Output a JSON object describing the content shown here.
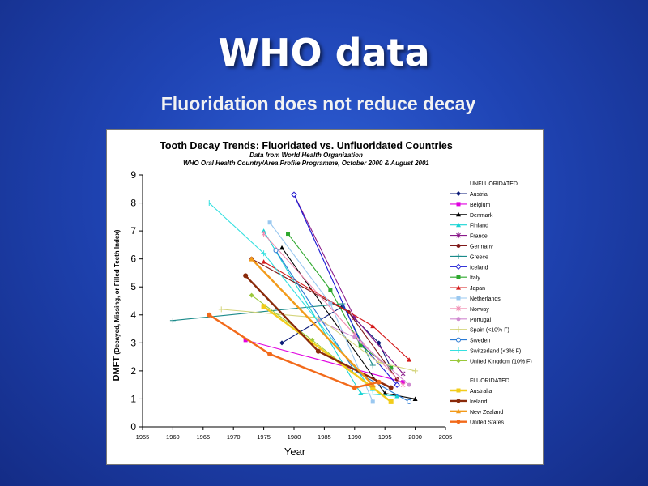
{
  "slide": {
    "title": "WHO data",
    "subtitle": "Fluoridation does not reduce decay"
  },
  "chart_data": {
    "type": "line",
    "title": "Tooth Decay Trends:  Fluoridated vs. Unfluoridated Countries",
    "subtitle_line1": "Data from World Health Organization",
    "subtitle_line2": "WHO Oral Health Country/Area Profile Programme, October 2000 & August 2001",
    "xlabel": "Year",
    "ylabel": "DMFT (Decayed, Missing, or Filled Teeth Index)",
    "xlim": [
      1955,
      2005
    ],
    "ylim": [
      0,
      9
    ],
    "xticks": [
      1955,
      1960,
      1965,
      1970,
      1975,
      1980,
      1985,
      1990,
      1995,
      2000,
      2005
    ],
    "yticks": [
      0,
      1,
      2,
      3,
      4,
      5,
      6,
      7,
      8,
      9
    ],
    "legend_group_unfluoridated": "UNFLUORIDATED",
    "legend_group_fluoridated": "FLUORIDATED",
    "grid": false,
    "series": [
      {
        "name": "Austria",
        "group": "unfluoridated",
        "color": "#0a1a78",
        "marker": "diamond",
        "points": [
          [
            1978,
            3.0
          ],
          [
            1988,
            4.3
          ],
          [
            1994,
            3.0
          ],
          [
            1996,
            2.1
          ]
        ]
      },
      {
        "name": "Belgium",
        "group": "unfluoridated",
        "color": "#e000e0",
        "marker": "square",
        "points": [
          [
            1972,
            3.1
          ],
          [
            1998,
            1.6
          ]
        ]
      },
      {
        "name": "Denmark",
        "group": "unfluoridated",
        "color": "#000000",
        "marker": "triangle",
        "points": [
          [
            1978,
            6.4
          ],
          [
            1995,
            1.2
          ],
          [
            2000,
            1.0
          ]
        ]
      },
      {
        "name": "Finland",
        "group": "unfluoridated",
        "color": "#19d4d4",
        "marker": "triangle",
        "points": [
          [
            1975,
            7.0
          ],
          [
            1991,
            1.2
          ],
          [
            1997,
            1.1
          ]
        ]
      },
      {
        "name": "France",
        "group": "unfluoridated",
        "color": "#8a1a8a",
        "marker": "star",
        "points": [
          [
            1980,
            8.3
          ],
          [
            1990,
            3.9
          ],
          [
            1998,
            1.9
          ]
        ]
      },
      {
        "name": "Germany",
        "group": "unfluoridated",
        "color": "#801a1a",
        "marker": "circle",
        "points": [
          [
            1973,
            6.0
          ],
          [
            1989,
            4.1
          ],
          [
            1997,
            1.7
          ]
        ]
      },
      {
        "name": "Greece",
        "group": "unfluoridated",
        "color": "#1a8a8a",
        "marker": "plus",
        "points": [
          [
            1960,
            3.8
          ],
          [
            1988,
            4.4
          ],
          [
            1993,
            2.2
          ]
        ]
      },
      {
        "name": "Iceland",
        "group": "unfluoridated",
        "color": "#1a1ad4",
        "marker": "diamond-open",
        "points": [
          [
            1980,
            8.3
          ],
          [
            1991,
            3.0
          ],
          [
            1997,
            1.5
          ]
        ]
      },
      {
        "name": "Italy",
        "group": "unfluoridated",
        "color": "#2ea82e",
        "marker": "square",
        "points": [
          [
            1979,
            6.9
          ],
          [
            1986,
            4.9
          ],
          [
            1991,
            2.9
          ],
          [
            1996,
            2.1
          ]
        ]
      },
      {
        "name": "Japan",
        "group": "unfluoridated",
        "color": "#d41a1a",
        "marker": "triangle",
        "points": [
          [
            1975,
            5.9
          ],
          [
            1993,
            3.6
          ],
          [
            1999,
            2.4
          ]
        ]
      },
      {
        "name": "Netherlands",
        "group": "unfluoridated",
        "color": "#9ac8f0",
        "marker": "square",
        "points": [
          [
            1976,
            7.3
          ],
          [
            1986,
            4.4
          ],
          [
            1993,
            0.9
          ]
        ]
      },
      {
        "name": "Norway",
        "group": "unfluoridated",
        "color": "#f08ab0",
        "marker": "star",
        "points": [
          [
            1975,
            6.9
          ],
          [
            1990,
            3.3
          ],
          [
            1998,
            1.5
          ]
        ]
      },
      {
        "name": "Portugal",
        "group": "unfluoridated",
        "color": "#d08ad0",
        "marker": "circle",
        "points": [
          [
            1984,
            3.8
          ],
          [
            1990,
            3.2
          ],
          [
            1999,
            1.5
          ]
        ]
      },
      {
        "name": "Spain (<10% F)",
        "group": "unfluoridated",
        "color": "#d4d47a",
        "marker": "plus",
        "points": [
          [
            1968,
            4.2
          ],
          [
            1984,
            3.9
          ],
          [
            1994,
            2.3
          ],
          [
            2000,
            2.0
          ]
        ]
      },
      {
        "name": "Sweden",
        "group": "unfluoridated",
        "color": "#2a7ad4",
        "marker": "circle-open",
        "points": [
          [
            1977,
            6.3
          ],
          [
            1990,
            2.0
          ],
          [
            1999,
            0.9
          ]
        ]
      },
      {
        "name": "Switzerland (<3% F)",
        "group": "unfluoridated",
        "color": "#34e0e0",
        "marker": "plus",
        "points": [
          [
            1966,
            8.0
          ],
          [
            1975,
            6.2
          ],
          [
            1993,
            1.3
          ]
        ]
      },
      {
        "name": "United Kingdom (10% F)",
        "group": "unfluoridated",
        "color": "#9ac83a",
        "marker": "diamond",
        "points": [
          [
            1973,
            4.7
          ],
          [
            1983,
            3.1
          ],
          [
            1993,
            1.4
          ]
        ]
      },
      {
        "name": "Australia",
        "group": "fluoridated",
        "color": "#f2cc1a",
        "marker": "square",
        "bold": true,
        "points": [
          [
            1975,
            4.3
          ],
          [
            1993,
            1.4
          ],
          [
            1996,
            0.9
          ]
        ]
      },
      {
        "name": "Ireland",
        "group": "fluoridated",
        "color": "#8a2a0a",
        "marker": "circle",
        "bold": true,
        "points": [
          [
            1972,
            5.4
          ],
          [
            1984,
            2.7
          ],
          [
            1996,
            1.4
          ]
        ]
      },
      {
        "name": "New Zealand",
        "group": "fluoridated",
        "color": "#f29a1a",
        "marker": "triangle",
        "bold": true,
        "points": [
          [
            1973,
            6.0
          ],
          [
            1993,
            1.5
          ]
        ]
      },
      {
        "name": "United States",
        "group": "fluoridated",
        "color": "#f26a1a",
        "marker": "circle",
        "bold": true,
        "points": [
          [
            1966,
            4.0
          ],
          [
            1976,
            2.6
          ],
          [
            1990,
            1.4
          ],
          [
            1994,
            1.6
          ]
        ]
      }
    ]
  }
}
